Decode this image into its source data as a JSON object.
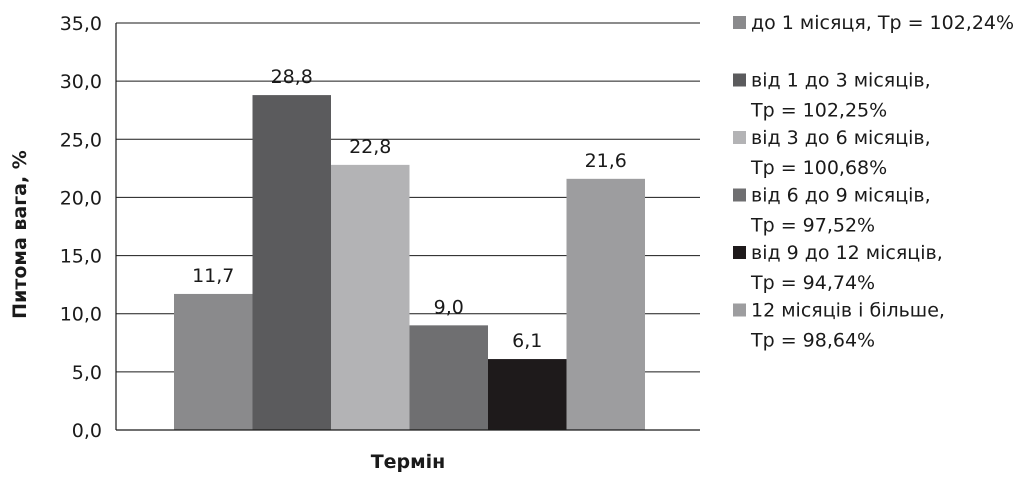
{
  "chart_data": {
    "type": "bar",
    "title": "",
    "xlabel": "Термін",
    "ylabel": "Питома вага, %",
    "ylim": [
      0,
      35
    ],
    "yticks": [
      "0,0",
      "5,0",
      "10,0",
      "15,0",
      "20,0",
      "25,0",
      "30,0",
      "35,0"
    ],
    "grid": true,
    "legend_position": "right",
    "series": [
      {
        "name_lines": [
          "до 1 місяця, Тр = 102,24%"
        ],
        "value": 11.7,
        "label": "11,7",
        "color": "#8a8a8c"
      },
      {
        "name_lines": [
          "від 1 до 3 місяців,",
          "Тр = 102,25%"
        ],
        "value": 28.8,
        "label": "28,8",
        "color": "#5b5b5d"
      },
      {
        "name_lines": [
          "від 3 до 6 місяців,",
          "Тр = 100,68%"
        ],
        "value": 22.8,
        "label": "22,8",
        "color": "#b3b3b5"
      },
      {
        "name_lines": [
          "від 6 до 9 місяців,",
          "Тр = 97,52%"
        ],
        "value": 9.0,
        "label": "9,0",
        "color": "#6f6f71"
      },
      {
        "name_lines": [
          "від 9 до 12 місяців,",
          "Тр = 94,74%"
        ],
        "value": 6.1,
        "label": "6,1",
        "color": "#1e1a1b"
      },
      {
        "name_lines": [
          "12 місяців і більше,",
          "Тр = 98,64%"
        ],
        "value": 21.6,
        "label": "21,6",
        "color": "#9d9d9f"
      }
    ]
  }
}
